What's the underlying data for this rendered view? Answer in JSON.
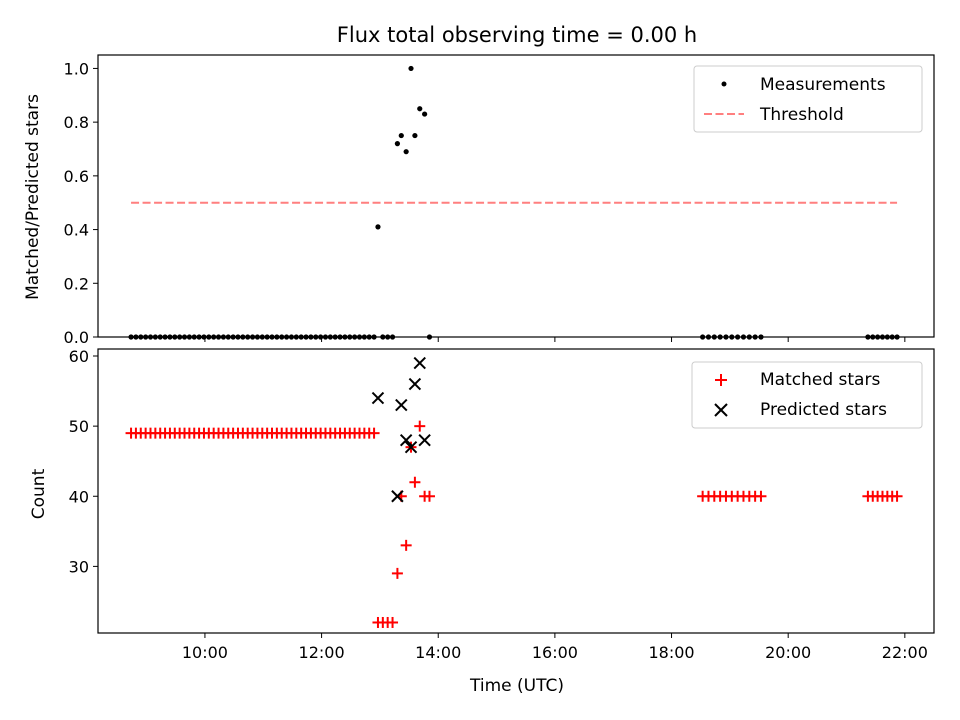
{
  "chart_data": [
    {
      "type": "scatter",
      "title": "Flux total observing time = 0.00 h",
      "xlabel": "",
      "ylabel": "Matched/Predicted stars",
      "xlim": [
        "08:10",
        "22:30"
      ],
      "ylim": [
        0,
        1.05
      ],
      "yticks": [
        "0.0",
        "0.2",
        "0.4",
        "0.6",
        "0.8",
        "1.0"
      ],
      "xticks": [
        "10:00",
        "12:00",
        "14:00",
        "16:00",
        "18:00",
        "20:00",
        "22:00"
      ],
      "show_xtick_labels": false,
      "grid": false,
      "legend": "top-right",
      "series": [
        {
          "name": "Measurements",
          "kind": "points",
          "color": "#000000",
          "x": [
            "08:44",
            "08:49",
            "08:54",
            "08:59",
            "09:04",
            "09:09",
            "09:14",
            "09:19",
            "09:24",
            "09:29",
            "09:34",
            "09:39",
            "09:44",
            "09:49",
            "09:54",
            "09:59",
            "10:04",
            "10:09",
            "10:14",
            "10:19",
            "10:24",
            "10:29",
            "10:34",
            "10:39",
            "10:44",
            "10:49",
            "10:54",
            "10:59",
            "11:04",
            "11:09",
            "11:14",
            "11:19",
            "11:24",
            "11:29",
            "11:34",
            "11:39",
            "11:44",
            "11:49",
            "11:54",
            "11:59",
            "12:04",
            "12:09",
            "12:14",
            "12:19",
            "12:24",
            "12:29",
            "12:34",
            "12:39",
            "12:44",
            "12:49",
            "12:54",
            "12:58",
            "13:03",
            "13:08",
            "13:13",
            "13:18",
            "13:22",
            "13:27",
            "13:32",
            "13:36",
            "13:41",
            "13:46",
            "13:51",
            "18:32",
            "18:38",
            "18:44",
            "18:50",
            "18:56",
            "19:02",
            "19:08",
            "19:14",
            "19:20",
            "19:26",
            "19:32",
            "21:22",
            "21:27",
            "21:32",
            "21:37",
            "21:42",
            "21:47",
            "21:52"
          ],
          "y": [
            0,
            0,
            0,
            0,
            0,
            0,
            0,
            0,
            0,
            0,
            0,
            0,
            0,
            0,
            0,
            0,
            0,
            0,
            0,
            0,
            0,
            0,
            0,
            0,
            0,
            0,
            0,
            0,
            0,
            0,
            0,
            0,
            0,
            0,
            0,
            0,
            0,
            0,
            0,
            0,
            0,
            0,
            0,
            0,
            0,
            0,
            0,
            0,
            0,
            0,
            0,
            0.41,
            0,
            0,
            0,
            0.72,
            0.75,
            0.69,
            1.0,
            0.75,
            0.85,
            0.83,
            0,
            0,
            0,
            0,
            0,
            0,
            0,
            0,
            0,
            0,
            0,
            0,
            0,
            0,
            0,
            0,
            0,
            0,
            0
          ]
        },
        {
          "name": "Threshold",
          "kind": "dashed-line",
          "color": "#ff7f7f",
          "x": [
            "08:44",
            "21:52"
          ],
          "y": [
            0.5,
            0.5
          ]
        }
      ]
    },
    {
      "type": "scatter",
      "title": "",
      "xlabel": "Time (UTC)",
      "ylabel": "Count",
      "xlim": [
        "08:10",
        "22:30"
      ],
      "ylim": [
        20.5,
        61
      ],
      "yticks": [
        "30",
        "40",
        "50",
        "60"
      ],
      "xticks": [
        "10:00",
        "12:00",
        "14:00",
        "16:00",
        "18:00",
        "20:00",
        "22:00"
      ],
      "show_xtick_labels": true,
      "grid": false,
      "legend": "top-right",
      "series": [
        {
          "name": "Matched stars",
          "marker": "plus",
          "color": "#ff0000",
          "x": [
            "08:44",
            "08:49",
            "08:54",
            "08:59",
            "09:04",
            "09:09",
            "09:14",
            "09:19",
            "09:24",
            "09:29",
            "09:34",
            "09:39",
            "09:44",
            "09:49",
            "09:54",
            "09:59",
            "10:04",
            "10:09",
            "10:14",
            "10:19",
            "10:24",
            "10:29",
            "10:34",
            "10:39",
            "10:44",
            "10:49",
            "10:54",
            "10:59",
            "11:04",
            "11:09",
            "11:14",
            "11:19",
            "11:24",
            "11:29",
            "11:34",
            "11:39",
            "11:44",
            "11:49",
            "11:54",
            "11:59",
            "12:04",
            "12:09",
            "12:14",
            "12:19",
            "12:24",
            "12:29",
            "12:34",
            "12:39",
            "12:44",
            "12:49",
            "12:54",
            "12:58",
            "13:03",
            "13:08",
            "13:13",
            "13:18",
            "13:22",
            "13:27",
            "13:32",
            "13:36",
            "13:41",
            "13:46",
            "13:51",
            "18:32",
            "18:38",
            "18:44",
            "18:50",
            "18:56",
            "19:02",
            "19:08",
            "19:14",
            "19:20",
            "19:26",
            "19:32",
            "21:22",
            "21:27",
            "21:32",
            "21:37",
            "21:42",
            "21:47",
            "21:52"
          ],
          "y": [
            49,
            49,
            49,
            49,
            49,
            49,
            49,
            49,
            49,
            49,
            49,
            49,
            49,
            49,
            49,
            49,
            49,
            49,
            49,
            49,
            49,
            49,
            49,
            49,
            49,
            49,
            49,
            49,
            49,
            49,
            49,
            49,
            49,
            49,
            49,
            49,
            49,
            49,
            49,
            49,
            49,
            49,
            49,
            49,
            49,
            49,
            49,
            49,
            49,
            49,
            49,
            22,
            22,
            22,
            22,
            29,
            40,
            33,
            47,
            42,
            50,
            40,
            40,
            40,
            40,
            40,
            40,
            40,
            40,
            40,
            40,
            40,
            40,
            40,
            40,
            40,
            40,
            40,
            40,
            40,
            40
          ]
        },
        {
          "name": "Predicted stars",
          "marker": "x",
          "color": "#000000",
          "x": [
            "12:58",
            "13:18",
            "13:22",
            "13:27",
            "13:32",
            "13:36",
            "13:41",
            "13:46"
          ],
          "y": [
            54,
            40,
            53,
            48,
            47,
            56,
            59,
            48
          ]
        }
      ]
    }
  ]
}
